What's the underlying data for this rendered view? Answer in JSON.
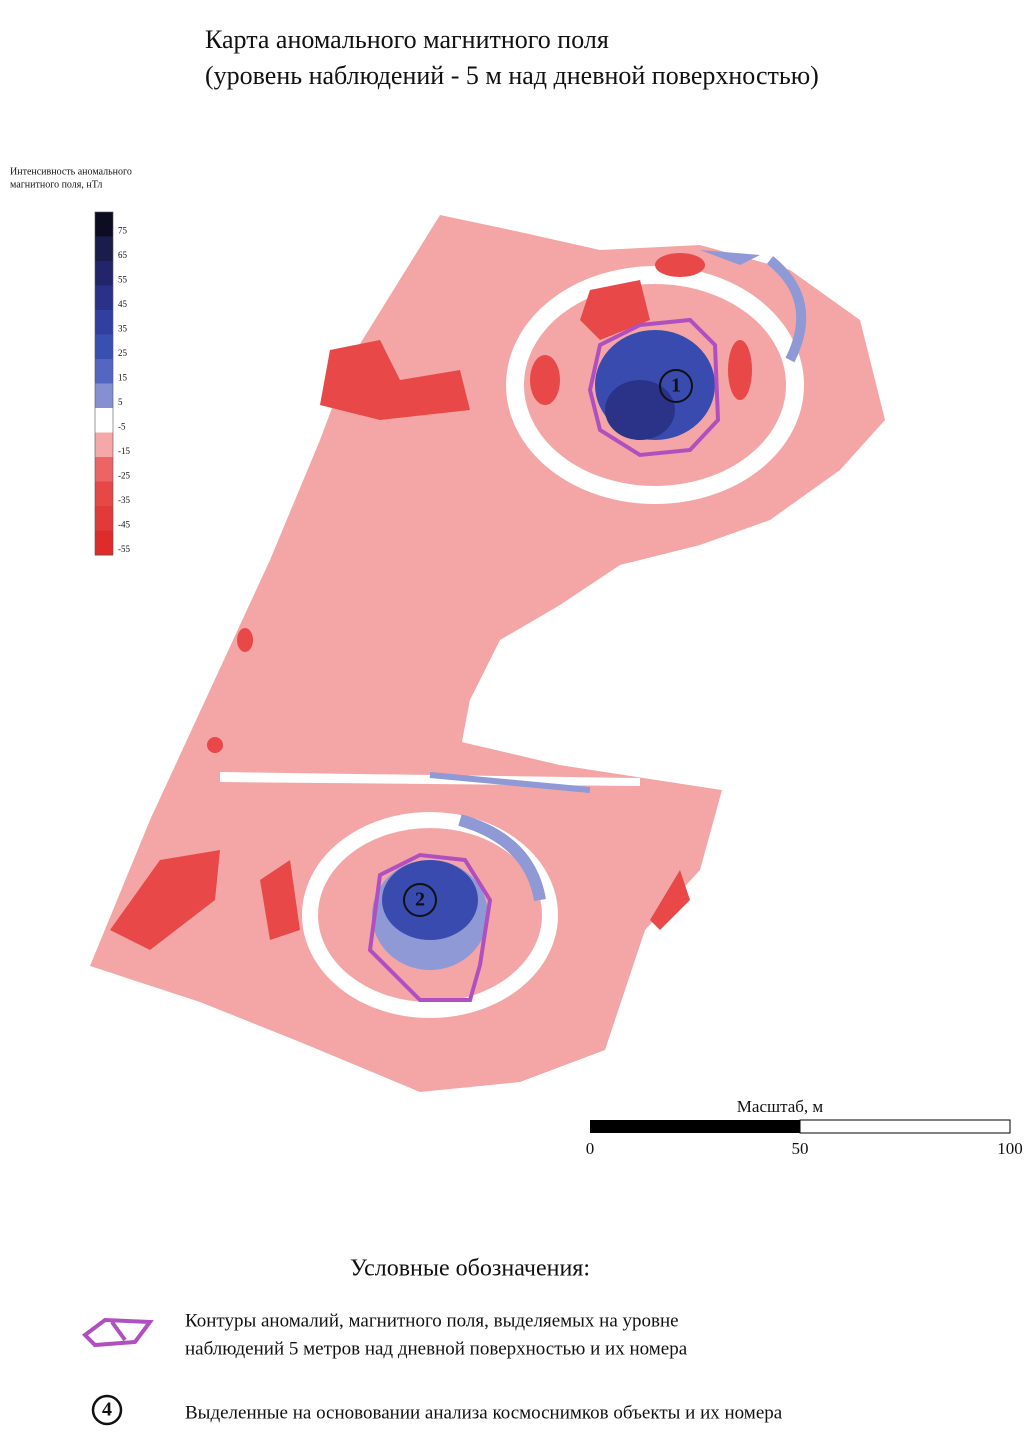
{
  "title": [
    "Карта аномального магнитного поля",
    "(уровень наблюдений - 5 м над дневной поверхностью)"
  ],
  "colorbar": {
    "title": [
      "Интенсивность аномального",
      "магнитного поля, нТл"
    ],
    "ticks": [
      75,
      65,
      55,
      45,
      35,
      25,
      15,
      5,
      -5,
      -15,
      -25,
      -35,
      -45,
      -55
    ],
    "colors": [
      "#0c0c22",
      "#1a1c4c",
      "#23256c",
      "#2b3186",
      "#3140a0",
      "#3a4fb2",
      "#5565c2",
      "#8590d2",
      "#ffffff",
      "#f4a8a8",
      "#ec6464",
      "#e64848",
      "#e23a3a",
      "#de2c2c"
    ]
  },
  "map": {
    "anomalies": [
      "1",
      "2"
    ]
  },
  "scale": {
    "label": "Масштаб, м",
    "ticks": [
      0,
      50,
      100
    ]
  },
  "legend": {
    "title": "Условные обозначения:",
    "items": [
      {
        "text": [
          "Контуры аномалий, магнитного поля, выделяемых на уровне",
          "наблюдений 5 метров над дневной поверхностью и их номера"
        ]
      },
      {
        "symbol": "4",
        "text": [
          "Выделенные на основовании анализа космоснимков объекты и их номера"
        ]
      }
    ]
  }
}
